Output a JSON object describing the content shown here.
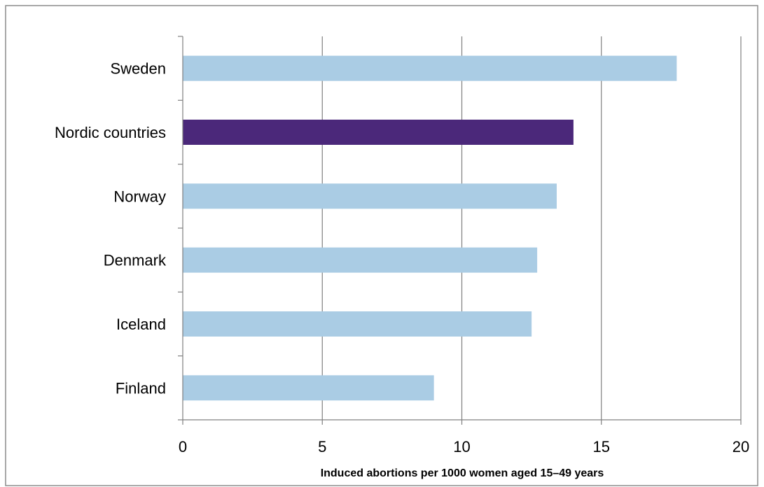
{
  "chart_data": {
    "type": "bar",
    "orientation": "horizontal",
    "title": "",
    "xlabel": "Induced abortions per 1000 women aged 15–49 years",
    "ylabel": "",
    "categories": [
      "Sweden",
      "Nordic countries",
      "Norway",
      "Denmark",
      "Iceland",
      "Finland"
    ],
    "values": [
      17.7,
      14.0,
      13.4,
      12.7,
      12.5,
      9.0
    ],
    "highlight_category": "Nordic countries",
    "xlim": [
      0,
      20
    ],
    "xticks": [
      0,
      5,
      10,
      15,
      20
    ],
    "grid": "vertical",
    "legend": "none",
    "colors": {
      "bar": "#aacce4",
      "highlight": "#4b287a"
    }
  }
}
